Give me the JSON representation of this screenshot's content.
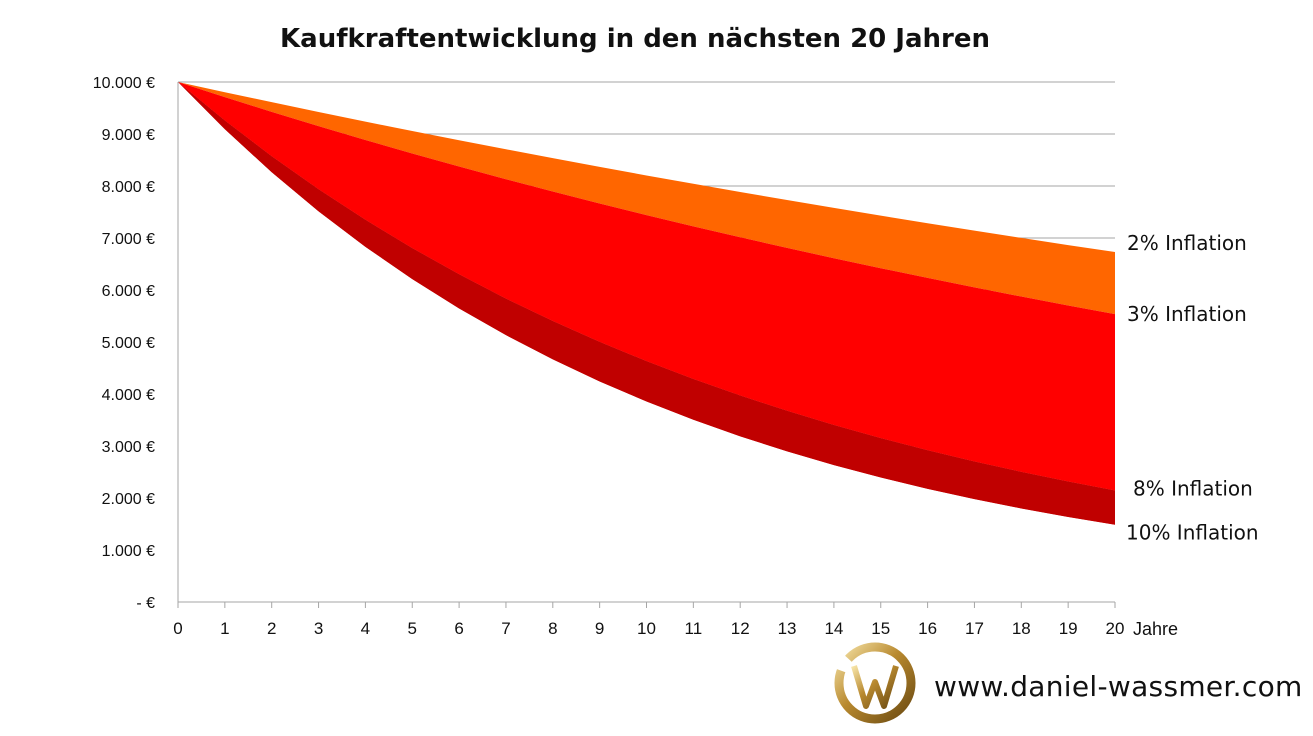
{
  "chart_data": {
    "type": "area",
    "title": "Kaufkraftentwicklung in den nächsten 20 Jahren",
    "xlabel": "Jahre",
    "ylabel": "",
    "x": [
      0,
      1,
      2,
      3,
      4,
      5,
      6,
      7,
      8,
      9,
      10,
      11,
      12,
      13,
      14,
      15,
      16,
      17,
      18,
      19,
      20
    ],
    "x_tick_labels": [
      "0",
      "1",
      "2",
      "3",
      "4",
      "5",
      "6",
      "7",
      "8",
      "9",
      "10",
      "11",
      "12",
      "13",
      "14",
      "15",
      "16",
      "17",
      "18",
      "19",
      "20"
    ],
    "y_tick_labels": [
      "-   €",
      "1.000 €",
      "2.000 €",
      "3.000 €",
      "4.000 €",
      "5.000 €",
      "6.000 €",
      "7.000 €",
      "8.000 €",
      "9.000 €",
      "10.000 €"
    ],
    "ylim": [
      0,
      10000
    ],
    "grid": true,
    "series": [
      {
        "name": "2% Inflation",
        "color": "#ff6600",
        "values": [
          10000,
          9804,
          9612,
          9423,
          9238,
          9057,
          8880,
          8706,
          8535,
          8368,
          8203,
          8043,
          7885,
          7730,
          7579,
          7430,
          7284,
          7142,
          7002,
          6864,
          6730
        ]
      },
      {
        "name": "3% Inflation",
        "color": "#ff0000",
        "values": [
          10000,
          9709,
          9426,
          9151,
          8885,
          8626,
          8375,
          8131,
          7894,
          7664,
          7441,
          7224,
          7014,
          6810,
          6611,
          6419,
          6232,
          6050,
          5874,
          5703,
          5537
        ]
      },
      {
        "name": "8% Inflation",
        "color": "#ff0000",
        "values": [
          10000,
          9259,
          8573,
          7938,
          7350,
          6806,
          6302,
          5835,
          5403,
          5002,
          4632,
          4289,
          3971,
          3677,
          3405,
          3152,
          2919,
          2703,
          2502,
          2317,
          2145
        ]
      },
      {
        "name": "10% Inflation",
        "color": "#c00000",
        "values": [
          10000,
          9091,
          8264,
          7513,
          6830,
          6209,
          5645,
          5132,
          4665,
          4241,
          3855,
          3505,
          3186,
          2897,
          2633,
          2394,
          2176,
          1978,
          1799,
          1635,
          1486
        ]
      }
    ]
  },
  "footer": {
    "url": "www.daniel-wassmer.com"
  }
}
